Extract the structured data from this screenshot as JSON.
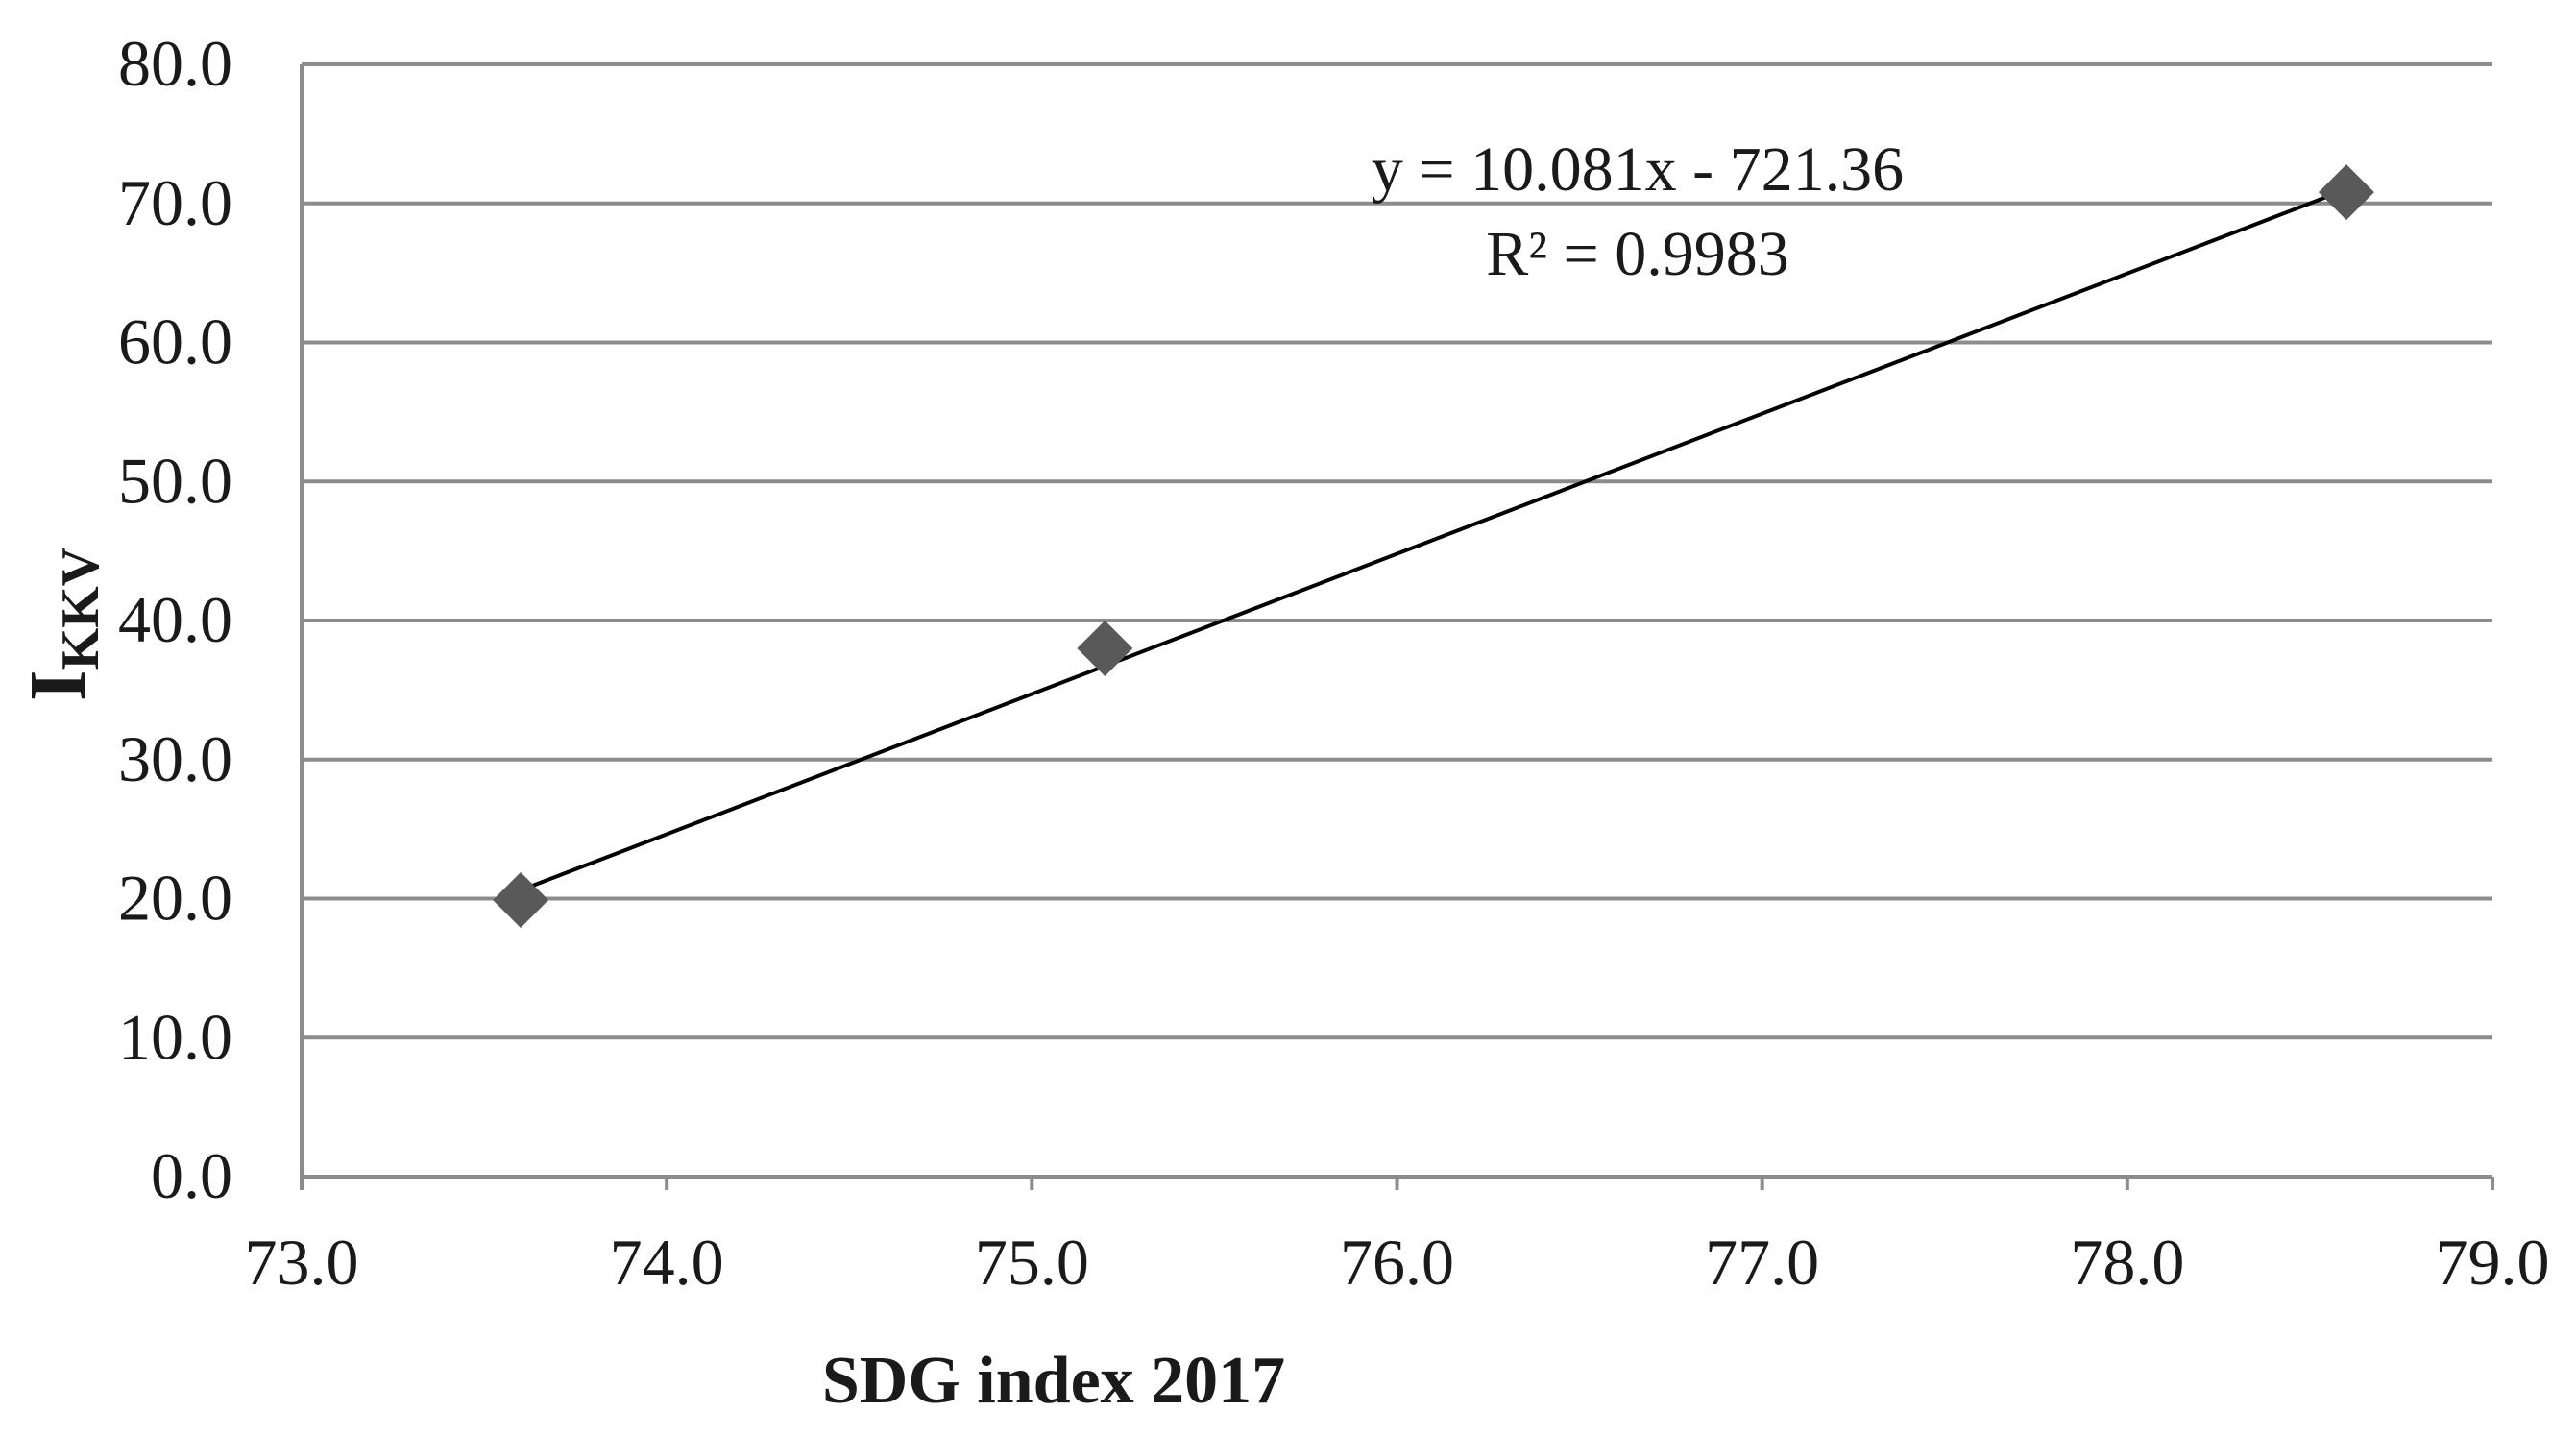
{
  "chart_data": {
    "type": "scatter",
    "title": "",
    "xlabel": "SDG index 2017",
    "ylabel_main": "I",
    "ylabel_sub": "KKV",
    "xlim": [
      73.0,
      79.0
    ],
    "ylim": [
      0.0,
      80.0
    ],
    "x_ticks": [
      "73.0",
      "74.0",
      "75.0",
      "76.0",
      "77.0",
      "78.0",
      "79.0"
    ],
    "y_ticks": [
      "0.0",
      "10.0",
      "20.0",
      "30.0",
      "40.0",
      "50.0",
      "60.0",
      "70.0",
      "80.0"
    ],
    "grid": "horizontal",
    "legend": "none",
    "series": [
      {
        "marker": "diamond",
        "color": "#595959",
        "points": [
          {
            "x": 73.6,
            "y": 19.9
          },
          {
            "x": 75.2,
            "y": 38.0
          },
          {
            "x": 78.6,
            "y": 70.8
          }
        ]
      }
    ],
    "trendline": {
      "type": "linear",
      "slope": 10.081,
      "intercept": -721.36,
      "x_range": [
        73.6,
        78.6
      ],
      "color": "#000000",
      "equation_label": "y = 10.081x - 721.36",
      "r2_label": "R² = 0.9983"
    }
  }
}
